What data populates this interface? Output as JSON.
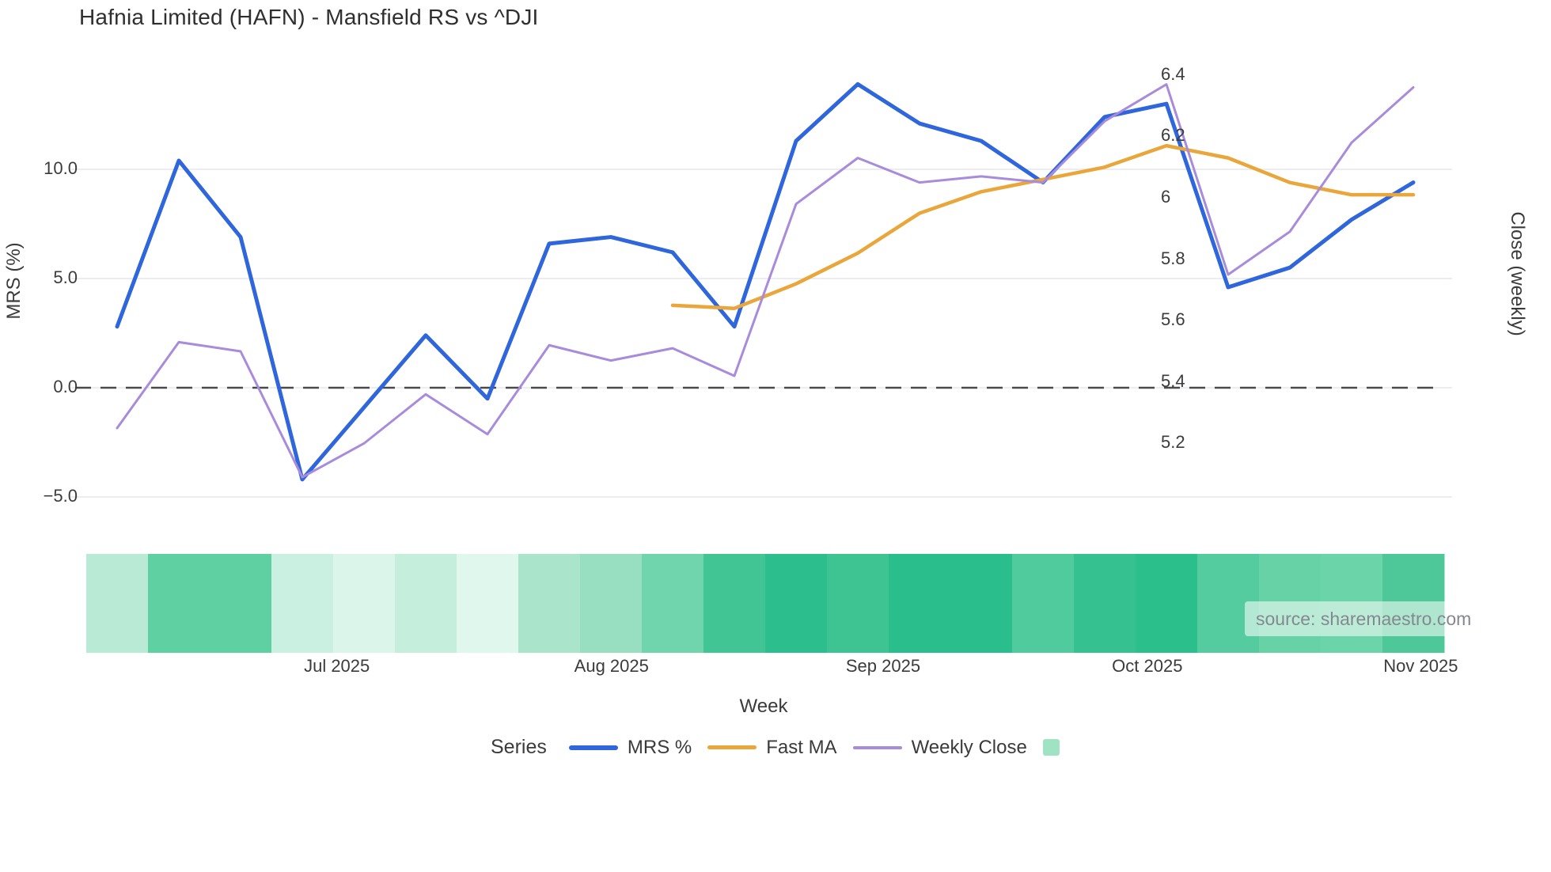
{
  "title": "Hafnia Limited (HAFN) - Mansfield RS vs ^DJI",
  "source_text": "source: sharemaestro.com",
  "colors": {
    "mrs_line": "#2f66db",
    "fast_ma_line": "#e9a63b",
    "weekly_close_line": "#a98bdb",
    "gridline": "#ebedf2",
    "zero_line": "#4a4a4a",
    "heatmap_legend_swatch": "#9fe3c4",
    "text": "#3b3b3b"
  },
  "axes": {
    "left": {
      "title": "MRS (%)",
      "ticks": [
        {
          "label": "10.0",
          "value": 10
        },
        {
          "label": "5.0",
          "value": 5
        },
        {
          "label": "0.0",
          "value": 0
        },
        {
          "label": "−5.0",
          "value": -5
        }
      ]
    },
    "right": {
      "title": "Close (weekly)",
      "ticks": [
        {
          "label": "6.4",
          "value": 6.4
        },
        {
          "label": "6.2",
          "value": 6.2
        },
        {
          "label": "6",
          "value": 6.0
        },
        {
          "label": "5.8",
          "value": 5.8
        },
        {
          "label": "5.6",
          "value": 5.6
        },
        {
          "label": "5.4",
          "value": 5.4
        },
        {
          "label": "5.2",
          "value": 5.2
        }
      ]
    },
    "x": {
      "title": "Week",
      "ticks": [
        {
          "label": "Jul 2025",
          "pos": 3.56
        },
        {
          "label": "Aug 2025",
          "pos": 8.01
        },
        {
          "label": "Sep 2025",
          "pos": 12.41
        },
        {
          "label": "Oct 2025",
          "pos": 16.69
        },
        {
          "label": "Nov 2025",
          "pos": 21.12
        }
      ]
    }
  },
  "legend": {
    "title": "Series",
    "items": [
      {
        "label": "MRS %",
        "swatch": "line",
        "color": "#2f66db",
        "thickness": 6
      },
      {
        "label": "Fast MA",
        "swatch": "line",
        "color": "#e9a63b",
        "thickness": 5
      },
      {
        "label": "Weekly Close",
        "swatch": "line",
        "color": "#a98bdb",
        "thickness": 4
      },
      {
        "label": "",
        "swatch": "square",
        "color": "#9fe3c4"
      }
    ]
  },
  "chart_data": {
    "type": "line",
    "x_unit": "week-index (22 weekly points, Jun 2025 → Oct 2025)",
    "x_tick_labels": [
      "Jul 2025",
      "Aug 2025",
      "Sep 2025",
      "Oct 2025",
      "Nov 2025"
    ],
    "ylim_left": {
      "min": -7.61,
      "max": 15.58
    },
    "ylim_right": {
      "min": 4.84,
      "max": 6.49
    },
    "grid": "horizontal-left-axis",
    "zero_dashed_line_left": 0,
    "legend_position": "bottom-center",
    "series": [
      {
        "name": "MRS %",
        "axis": "left",
        "color": "#2f66db",
        "width": 5,
        "values": [
          2.8,
          10.4,
          6.9,
          -4.2,
          -0.9,
          2.4,
          -0.5,
          6.6,
          6.9,
          6.2,
          2.8,
          11.3,
          13.9,
          12.1,
          11.3,
          9.4,
          12.4,
          13.0,
          4.6,
          5.5,
          7.7,
          9.4
        ]
      },
      {
        "name": "Fast MA",
        "axis": "right",
        "color": "#e9a63b",
        "width": 4.5,
        "values": [
          null,
          null,
          null,
          null,
          null,
          null,
          null,
          null,
          null,
          5.65,
          5.64,
          5.72,
          5.82,
          5.95,
          6.02,
          6.06,
          6.1,
          6.17,
          6.13,
          6.05,
          6.01,
          6.01
        ]
      },
      {
        "name": "Weekly Close",
        "axis": "right",
        "color": "#a98bdb",
        "width": 3,
        "values": [
          5.25,
          5.53,
          5.5,
          5.09,
          5.2,
          5.36,
          5.23,
          5.52,
          5.47,
          5.51,
          5.42,
          5.98,
          6.13,
          6.05,
          6.07,
          6.05,
          6.25,
          6.37,
          5.75,
          5.89,
          6.18,
          6.36
        ]
      }
    ],
    "heatmap_strip": {
      "description": "22 weekly cells under plot, green intensity scale",
      "cell_colors": [
        "#b9ead6",
        "#5ed0a2",
        "#5ed0a2",
        "#c9f0e0",
        "#dcf5ea",
        "#c5eedd",
        "#dff7ec",
        "#a9e4cb",
        "#97dfc0",
        "#70d5ac",
        "#41c595",
        "#2cbf8d",
        "#3ec493",
        "#29be8b",
        "#29be8b",
        "#50cb9d",
        "#36c190",
        "#2bbf8c",
        "#54cc9f",
        "#66d2a6",
        "#6bd4a9",
        "#4ec898"
      ]
    }
  }
}
